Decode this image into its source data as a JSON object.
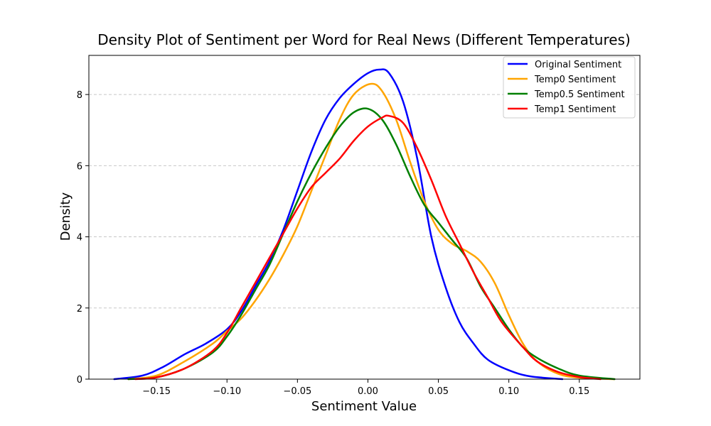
{
  "chart_data": {
    "type": "line",
    "title": "Density Plot of Sentiment per Word for Real News (Different Temperatures)",
    "xlabel": "Sentiment Value",
    "ylabel": "Density",
    "xlim": [
      -0.198,
      0.193
    ],
    "ylim": [
      0,
      9.1
    ],
    "x_ticks": [
      -0.15,
      -0.1,
      -0.05,
      0.0,
      0.05,
      0.1,
      0.15
    ],
    "x_tick_labels": [
      "−0.15",
      "−0.10",
      "−0.05",
      "0.00",
      "0.05",
      "0.10",
      "0.15"
    ],
    "y_ticks": [
      0,
      2,
      4,
      6,
      8
    ],
    "y_tick_labels": [
      "0",
      "2",
      "4",
      "6",
      "8"
    ],
    "grid": "horizontal dashed",
    "legend_position": "top-right",
    "series": [
      {
        "name": "Original Sentiment",
        "color": "#0000ff",
        "points": [
          [
            -0.18,
            0.0
          ],
          [
            -0.16,
            0.1
          ],
          [
            -0.145,
            0.35
          ],
          [
            -0.13,
            0.7
          ],
          [
            -0.115,
            1.0
          ],
          [
            -0.1,
            1.4
          ],
          [
            -0.09,
            1.9
          ],
          [
            -0.08,
            2.6
          ],
          [
            -0.07,
            3.3
          ],
          [
            -0.06,
            4.2
          ],
          [
            -0.05,
            5.3
          ],
          [
            -0.04,
            6.4
          ],
          [
            -0.03,
            7.3
          ],
          [
            -0.02,
            7.9
          ],
          [
            -0.01,
            8.3
          ],
          [
            0.0,
            8.6
          ],
          [
            0.008,
            8.7
          ],
          [
            0.015,
            8.6
          ],
          [
            0.025,
            7.8
          ],
          [
            0.035,
            6.2
          ],
          [
            0.045,
            4.0
          ],
          [
            0.055,
            2.6
          ],
          [
            0.065,
            1.6
          ],
          [
            0.075,
            1.0
          ],
          [
            0.085,
            0.55
          ],
          [
            0.1,
            0.25
          ],
          [
            0.115,
            0.08
          ],
          [
            0.138,
            0.0
          ]
        ]
      },
      {
        "name": "Temp0 Sentiment",
        "color": "#ffa500",
        "points": [
          [
            -0.17,
            0.0
          ],
          [
            -0.15,
            0.1
          ],
          [
            -0.13,
            0.5
          ],
          [
            -0.11,
            1.0
          ],
          [
            -0.1,
            1.35
          ],
          [
            -0.09,
            1.7
          ],
          [
            -0.08,
            2.2
          ],
          [
            -0.07,
            2.8
          ],
          [
            -0.06,
            3.5
          ],
          [
            -0.05,
            4.3
          ],
          [
            -0.04,
            5.3
          ],
          [
            -0.03,
            6.3
          ],
          [
            -0.02,
            7.3
          ],
          [
            -0.01,
            8.0
          ],
          [
            0.002,
            8.3
          ],
          [
            0.01,
            8.1
          ],
          [
            0.02,
            7.3
          ],
          [
            0.03,
            6.1
          ],
          [
            0.04,
            5.0
          ],
          [
            0.05,
            4.2
          ],
          [
            0.06,
            3.8
          ],
          [
            0.07,
            3.6
          ],
          [
            0.08,
            3.3
          ],
          [
            0.09,
            2.7
          ],
          [
            0.1,
            1.8
          ],
          [
            0.11,
            1.0
          ],
          [
            0.12,
            0.5
          ],
          [
            0.135,
            0.15
          ],
          [
            0.15,
            0.04
          ],
          [
            0.175,
            0.0
          ]
        ]
      },
      {
        "name": "Temp0.5 Sentiment",
        "color": "#008000",
        "points": [
          [
            -0.17,
            0.0
          ],
          [
            -0.15,
            0.05
          ],
          [
            -0.13,
            0.3
          ],
          [
            -0.11,
            0.75
          ],
          [
            -0.1,
            1.2
          ],
          [
            -0.09,
            1.8
          ],
          [
            -0.08,
            2.5
          ],
          [
            -0.07,
            3.2
          ],
          [
            -0.06,
            4.1
          ],
          [
            -0.05,
            5.0
          ],
          [
            -0.04,
            5.8
          ],
          [
            -0.03,
            6.5
          ],
          [
            -0.02,
            7.1
          ],
          [
            -0.01,
            7.5
          ],
          [
            0.0,
            7.6
          ],
          [
            0.01,
            7.3
          ],
          [
            0.02,
            6.6
          ],
          [
            0.03,
            5.7
          ],
          [
            0.04,
            4.9
          ],
          [
            0.05,
            4.4
          ],
          [
            0.06,
            3.9
          ],
          [
            0.07,
            3.4
          ],
          [
            0.08,
            2.6
          ],
          [
            0.09,
            2.0
          ],
          [
            0.1,
            1.4
          ],
          [
            0.11,
            0.9
          ],
          [
            0.12,
            0.6
          ],
          [
            0.135,
            0.3
          ],
          [
            0.15,
            0.1
          ],
          [
            0.175,
            0.0
          ]
        ]
      },
      {
        "name": "Temp1 Sentiment",
        "color": "#ff0000",
        "points": [
          [
            -0.165,
            0.0
          ],
          [
            -0.15,
            0.05
          ],
          [
            -0.13,
            0.3
          ],
          [
            -0.11,
            0.8
          ],
          [
            -0.1,
            1.3
          ],
          [
            -0.09,
            2.0
          ],
          [
            -0.08,
            2.7
          ],
          [
            -0.07,
            3.4
          ],
          [
            -0.06,
            4.1
          ],
          [
            -0.05,
            4.8
          ],
          [
            -0.04,
            5.4
          ],
          [
            -0.03,
            5.8
          ],
          [
            -0.02,
            6.2
          ],
          [
            -0.01,
            6.7
          ],
          [
            0.0,
            7.1
          ],
          [
            0.01,
            7.35
          ],
          [
            0.015,
            7.4
          ],
          [
            0.025,
            7.2
          ],
          [
            0.035,
            6.5
          ],
          [
            0.045,
            5.6
          ],
          [
            0.055,
            4.6
          ],
          [
            0.065,
            3.8
          ],
          [
            0.075,
            3.0
          ],
          [
            0.085,
            2.3
          ],
          [
            0.095,
            1.6
          ],
          [
            0.11,
            0.9
          ],
          [
            0.12,
            0.5
          ],
          [
            0.135,
            0.2
          ],
          [
            0.15,
            0.06
          ],
          [
            0.165,
            0.0
          ]
        ]
      }
    ]
  }
}
